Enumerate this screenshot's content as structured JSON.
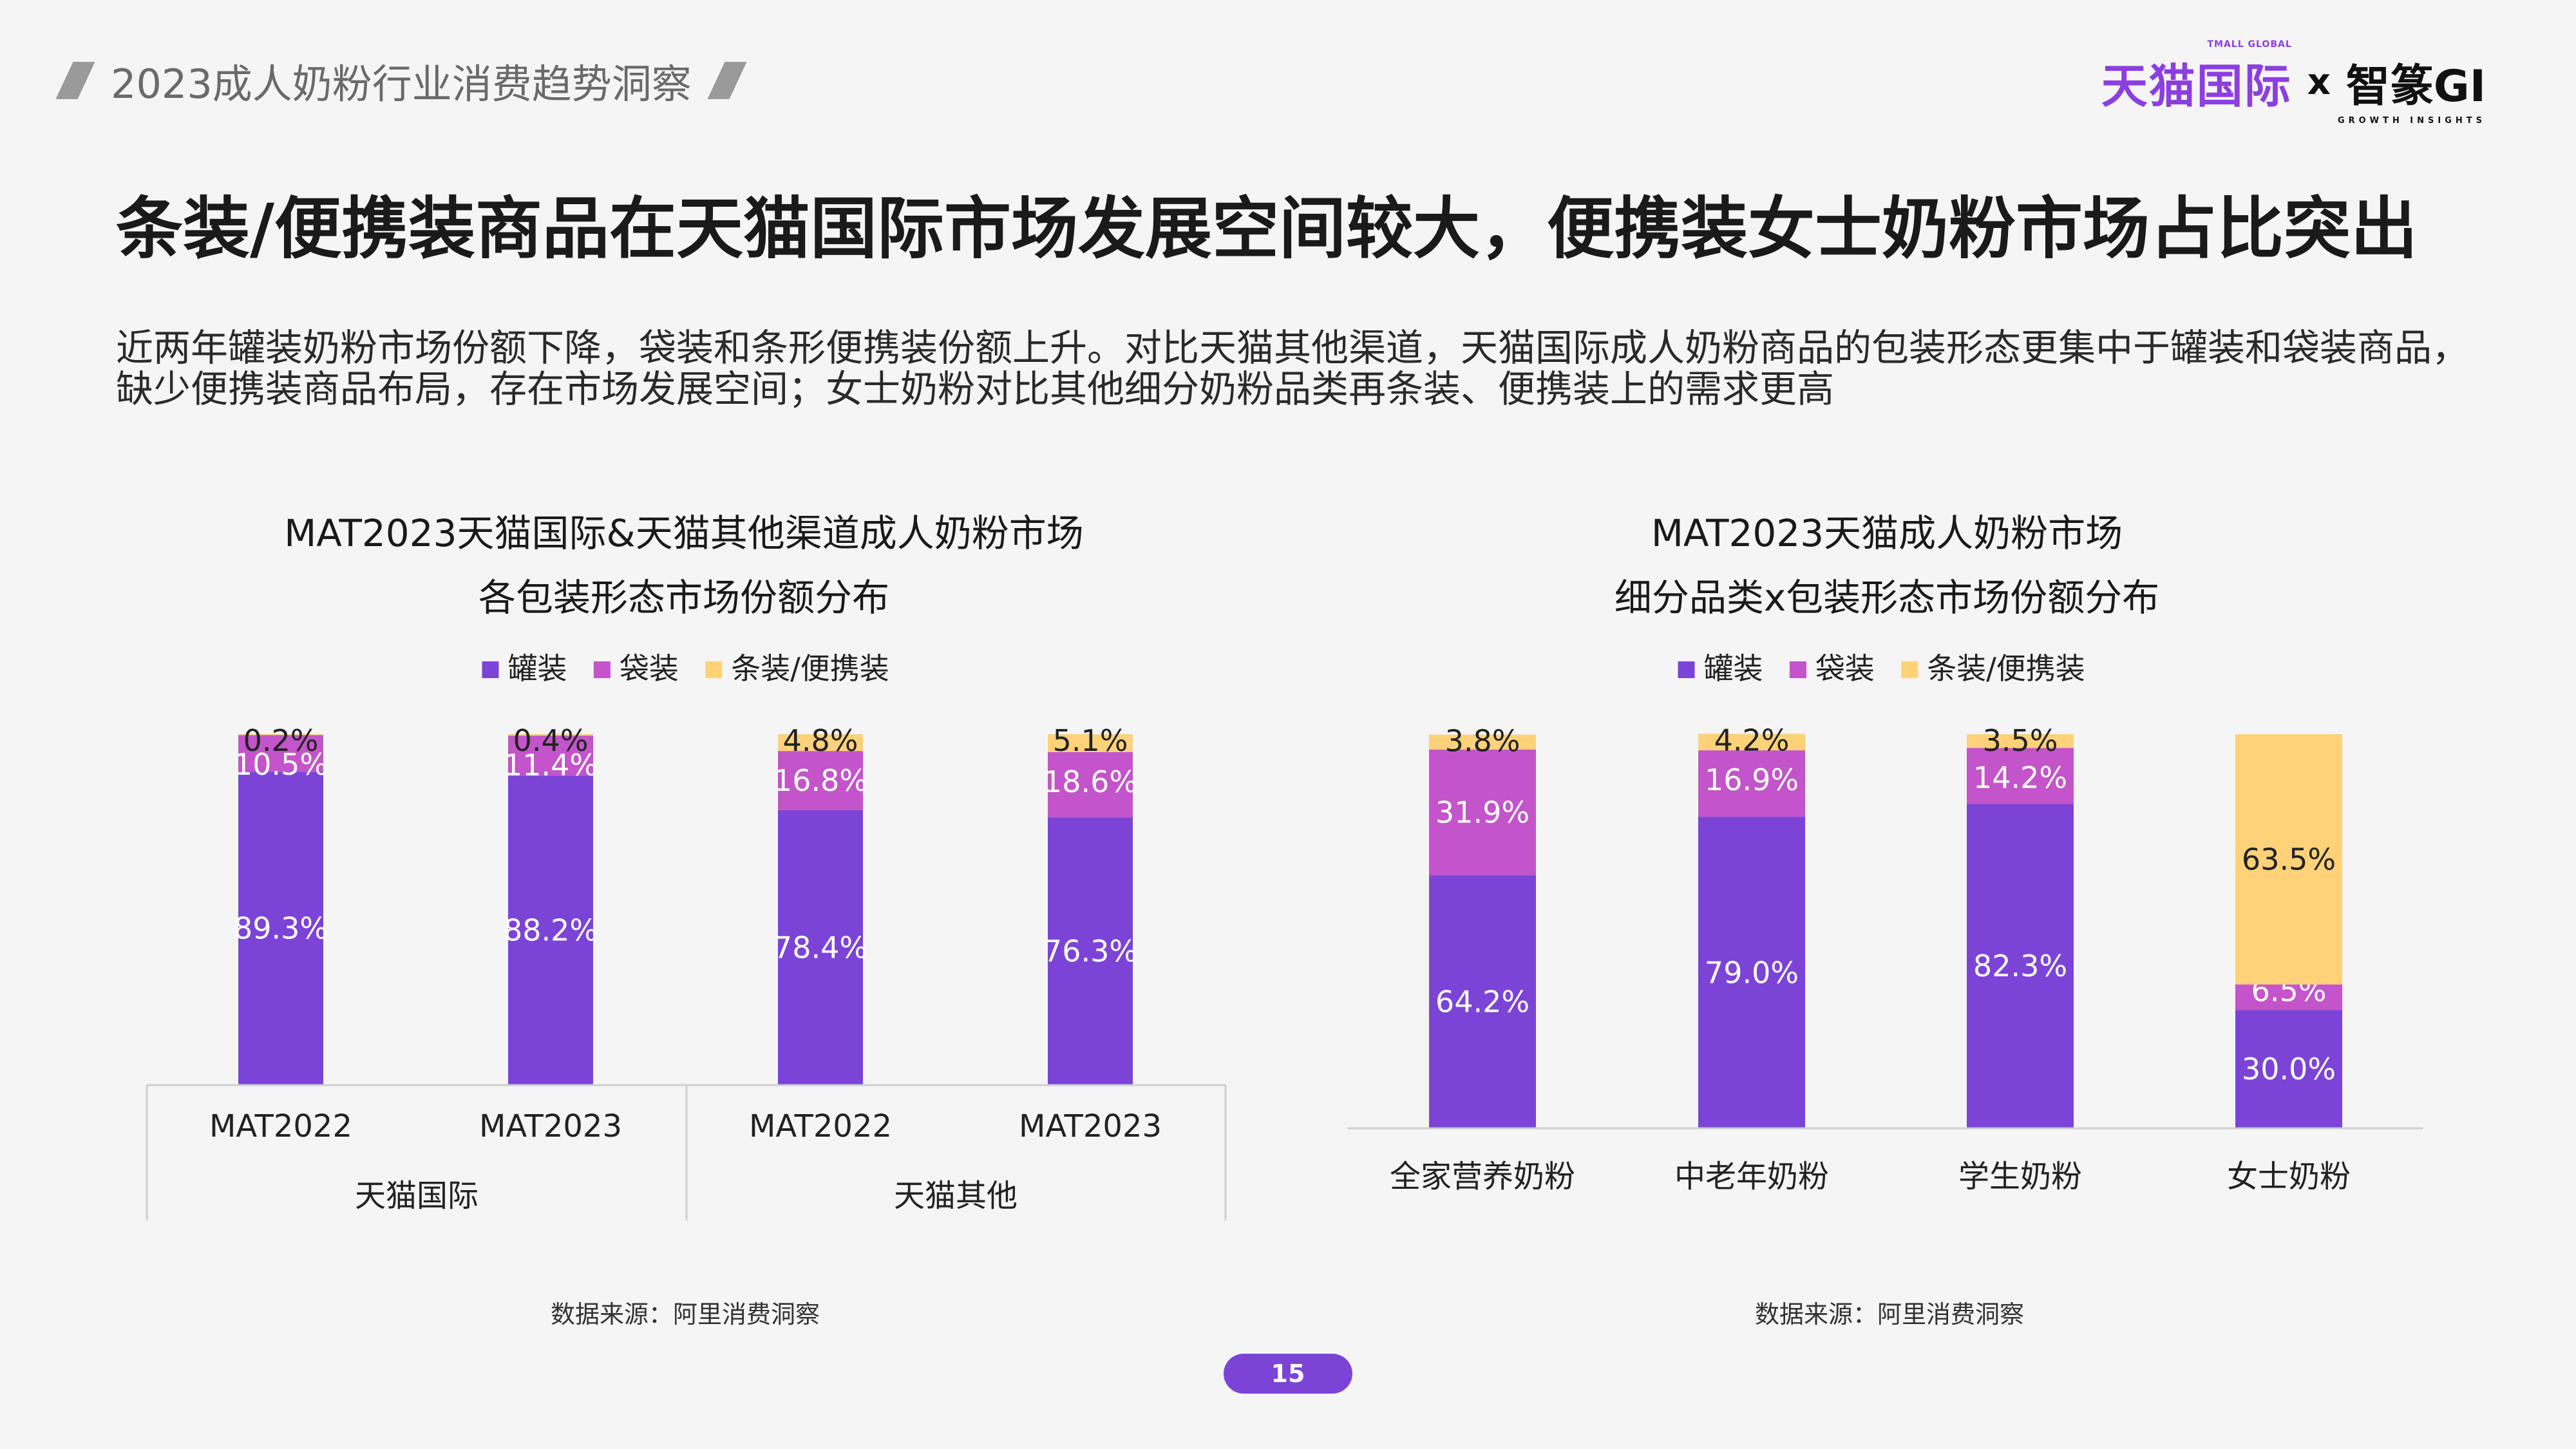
{
  "header": {
    "deck_title": "2023成人奶粉行业消费趋势洞察",
    "brand_tmall": "天猫国际",
    "brand_tmall_small": "TMALL GLOBAL",
    "brand_x": "x",
    "brand_gi": "智篆GI",
    "brand_gi_small": "GROWTH INSIGHTS"
  },
  "main_title": "条装/便携装商品在天猫国际市场发展空间较大，便携装女士奶粉市场占比突出",
  "description": {
    "line1": "近两年罐装奶粉市场份额下降，袋装和条形便携装份额上升。对比天猫其他渠道，天猫国际成人奶粉商品的包装形态更集中于罐装和袋装商品，",
    "line2": "缺少便携装商品布局，存在市场发展空间；女士奶粉对比其他细分奶粉品类再条装、便携装上的需求更高"
  },
  "colors": {
    "can": "#7b44d6",
    "bag": "#c354c9",
    "stick": "#ffd27a"
  },
  "chart_data": [
    {
      "type": "bar",
      "stacked": true,
      "title_line1": "MAT2023天猫国际&天猫其他渠道成人奶粉市场",
      "title_line2": "各包装形态市场份额分布",
      "categories": [
        "MAT2022",
        "MAT2023",
        "MAT2022",
        "MAT2023"
      ],
      "groups": [
        {
          "label": "天猫国际",
          "categories": [
            "MAT2022",
            "MAT2023"
          ]
        },
        {
          "label": "天猫其他",
          "categories": [
            "MAT2022",
            "MAT2023"
          ]
        }
      ],
      "series": [
        {
          "name": "罐装",
          "values": [
            89.3,
            88.2,
            78.4,
            76.3
          ],
          "labels": [
            "89.3%",
            "88.2%",
            "78.4%",
            "76.3%"
          ]
        },
        {
          "name": "袋装",
          "values": [
            10.5,
            11.4,
            16.8,
            18.6
          ],
          "labels": [
            "10.5%",
            "11.4%",
            "16.8%",
            "18.6%"
          ]
        },
        {
          "name": "条装/便携装",
          "values": [
            0.2,
            0.4,
            4.8,
            5.1
          ],
          "labels": [
            "0.2%",
            "0.4%",
            "4.8%",
            "5.1%"
          ]
        }
      ],
      "ylim": [
        0,
        100
      ],
      "legend": "top",
      "source": "数据来源：阿里消费洞察"
    },
    {
      "type": "bar",
      "stacked": true,
      "title_line1": "MAT2023天猫成人奶粉市场",
      "title_line2": "细分品类x包装形态市场份额分布",
      "categories": [
        "全家营养奶粉",
        "中老年奶粉",
        "学生奶粉",
        "女士奶粉"
      ],
      "series": [
        {
          "name": "罐装",
          "values": [
            64.2,
            79.0,
            82.3,
            30.0
          ],
          "labels": [
            "64.2%",
            "79.0%",
            "82.3%",
            "30.0%"
          ]
        },
        {
          "name": "袋装",
          "values": [
            31.9,
            16.9,
            14.2,
            6.5
          ],
          "labels": [
            "31.9%",
            "16.9%",
            "14.2%",
            "6.5%"
          ]
        },
        {
          "name": "条装/便携装",
          "values": [
            3.8,
            4.2,
            3.5,
            63.5
          ],
          "labels": [
            "3.8%",
            "4.2%",
            "3.5%",
            "63.5%"
          ]
        }
      ],
      "ylim": [
        0,
        100
      ],
      "legend": "top",
      "source": "数据来源：阿里消费洞察"
    }
  ],
  "page_number": "15"
}
